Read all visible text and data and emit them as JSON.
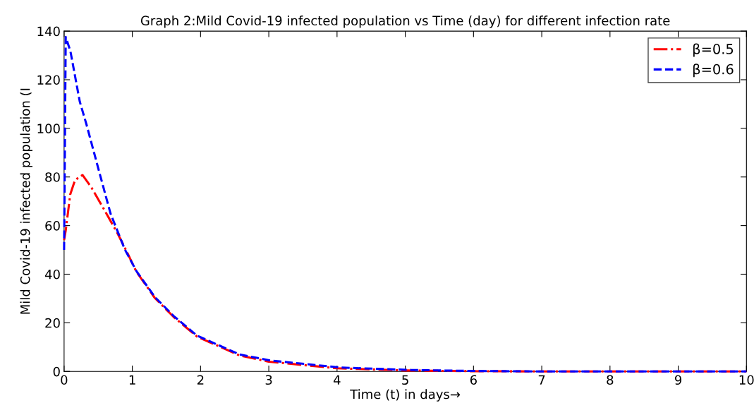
{
  "chart_data": {
    "type": "line",
    "title": "Graph 2:Mild Covid-19 infected population vs Time (day) for different infection rate",
    "xlabel": "Time (t) in days→",
    "ylabel": "Mild Covid-19 infected population (I",
    "xlim": [
      0,
      10
    ],
    "ylim": [
      0,
      140
    ],
    "xticks": [
      0,
      1,
      2,
      3,
      4,
      5,
      6,
      7,
      8,
      9,
      10
    ],
    "yticks": [
      0,
      20,
      40,
      60,
      80,
      100,
      120,
      140
    ],
    "grid": false,
    "legend": "top right",
    "marker": "none",
    "series": [
      {
        "name": "β=0.5",
        "color": "#ff0000",
        "line_style": "dashdot",
        "x": [
          0,
          0.024,
          0.09,
          0.16,
          0.27,
          0.4,
          0.58,
          0.78,
          0.92,
          1.06,
          1.33,
          1.61,
          1.95,
          2.57,
          3.0,
          4.0,
          5.0,
          6.0,
          7.0,
          8.0,
          9.0,
          10.0
        ],
        "values": [
          54,
          58,
          72.8,
          78.7,
          80.8,
          75.7,
          66.9,
          57,
          49.2,
          41,
          30.2,
          22.3,
          14.3,
          6.6,
          4.0,
          1.3,
          0.4,
          0.1,
          0,
          0,
          0,
          0
        ]
      },
      {
        "name": "β=0.6",
        "color": "#0000ff",
        "line_style": "dashed",
        "x": [
          0,
          0.024,
          0.093,
          0.23,
          0.33,
          0.51,
          0.68,
          0.89,
          1.06,
          1.33,
          1.61,
          1.95,
          2.57,
          3.02,
          4.05,
          5.09,
          6.0,
          7.0,
          8.0,
          9.0,
          10.0
        ],
        "values": [
          50,
          137.6,
          131.7,
          111,
          101.4,
          82.6,
          65,
          50.2,
          41.3,
          30.6,
          22.7,
          14.7,
          7.0,
          4.5,
          1.6,
          0.6,
          0.2,
          0,
          0,
          0,
          0
        ]
      }
    ]
  }
}
